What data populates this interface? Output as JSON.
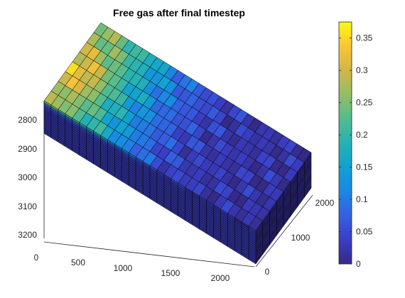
{
  "chart_data": {
    "type": "heatmap",
    "title": "Free gas after final timestep",
    "render": "3d-grid-surface",
    "grid": true,
    "axes": {
      "z": {
        "ticks": [
          2800,
          2900,
          3000,
          3100,
          3200
        ],
        "range": [
          2700,
          3250
        ],
        "direction": "reversed"
      },
      "x": {
        "ticks": [
          0,
          500,
          1000,
          1500,
          2000
        ],
        "range": [
          0,
          2400
        ]
      },
      "y": {
        "ticks": [
          0,
          1000,
          2000
        ],
        "range": [
          0,
          2400
        ]
      }
    },
    "colorbar": {
      "colormap": "parula",
      "range": [
        0,
        0.375
      ],
      "ticks": [
        0,
        0.05,
        0.1,
        0.15,
        0.2,
        0.25,
        0.3,
        0.35
      ],
      "tick_labels": [
        "0",
        "0.05",
        "0.1",
        "0.15",
        "0.2",
        "0.25",
        "0.3",
        "0.35"
      ]
    },
    "values_description_min": 0,
    "values_description_max": 0.37
  },
  "colors": {
    "parula": [
      "#352a87",
      "#3a3ec5",
      "#3560e2",
      "#1c86e4",
      "#10a2d2",
      "#26b2b4",
      "#52bc8f",
      "#93bd67",
      "#d0b747",
      "#fbc436",
      "#f9fb0e"
    ],
    "edge": "#000000",
    "side_shade": 0.82
  }
}
